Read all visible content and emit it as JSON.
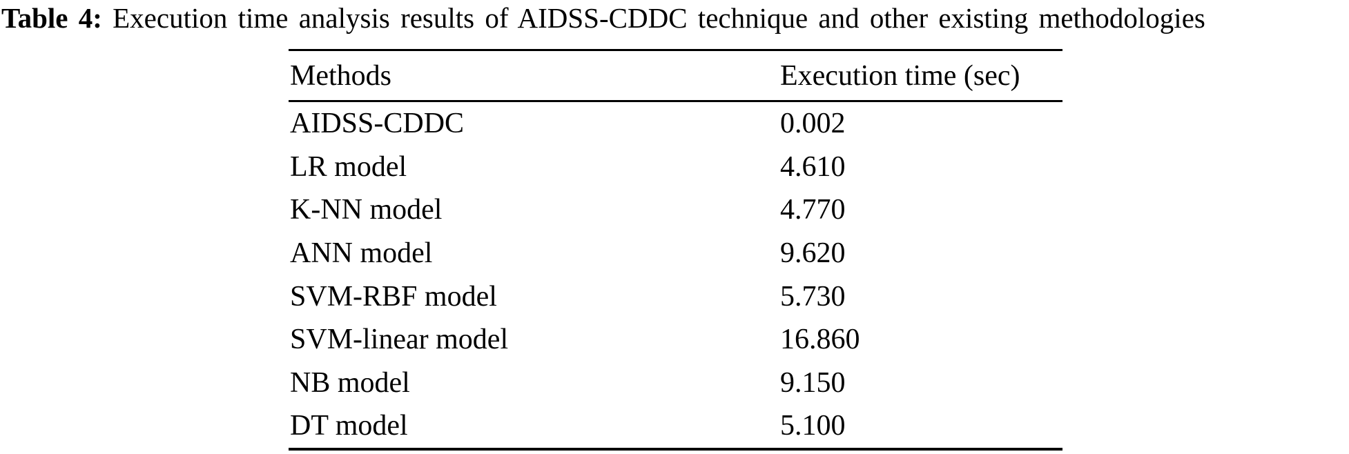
{
  "page": {
    "background_color": "#ffffff",
    "text_color": "#000000"
  },
  "caption": {
    "label": "Table 4:",
    "text": " Execution time analysis results of AIDSS-CDDC technique and other existing methodologies"
  },
  "table": {
    "columns": [
      "Methods",
      "Execution time (sec)"
    ],
    "rows": [
      {
        "method": "AIDSS-CDDC",
        "time": "0.002"
      },
      {
        "method": "LR model",
        "time": "4.610"
      },
      {
        "method": "K-NN model",
        "time": "4.770"
      },
      {
        "method": "ANN model",
        "time": "9.620"
      },
      {
        "method": "SVM-RBF model",
        "time": "5.730"
      },
      {
        "method": "SVM-linear model",
        "time": "16.860"
      },
      {
        "method": "NB model",
        "time": "9.150"
      },
      {
        "method": "DT model",
        "time": "5.100"
      }
    ]
  },
  "chart_data": {
    "type": "table",
    "title": "Table 4: Execution time analysis results of AIDSS-CDDC technique and other existing methodologies",
    "columns": [
      "Methods",
      "Execution time (sec)"
    ],
    "categories": [
      "AIDSS-CDDC",
      "LR model",
      "K-NN model",
      "ANN model",
      "SVM-RBF model",
      "SVM-linear model",
      "NB model",
      "DT model"
    ],
    "values": [
      0.002,
      4.61,
      4.77,
      9.62,
      5.73,
      16.86,
      9.15,
      5.1
    ]
  }
}
